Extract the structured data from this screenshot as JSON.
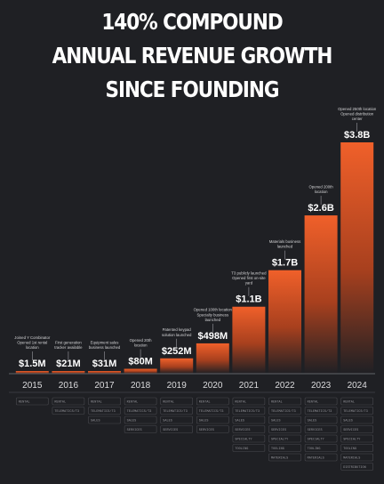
{
  "headline": {
    "line1": "140% COMPOUND",
    "line2": "ANNUAL REVENUE GROWTH",
    "line3": "SINCE FOUNDING"
  },
  "colors": {
    "background": "#1f2024",
    "bar_top": "#f0602a",
    "bar_bottom": "#1f2024"
  },
  "chart_data": {
    "type": "bar",
    "categories": [
      "2015",
      "2016",
      "2017",
      "2018",
      "2019",
      "2020",
      "2021",
      "2022",
      "2023",
      "2024"
    ],
    "values": [
      1.5,
      21,
      31,
      80,
      252,
      498,
      1100,
      1700,
      2600,
      3800
    ],
    "value_labels": [
      "$1.5M",
      "$21M",
      "$31M",
      "$80M",
      "$252M",
      "$498M",
      "$1.1B",
      "$1.7B",
      "$2.6B",
      "$3.8B"
    ],
    "milestones": [
      [
        "Joined Y Combinator",
        "Opened 1st rental",
        "location"
      ],
      [
        "First generation",
        "tracker available"
      ],
      [
        "Equipment sales",
        "business launched"
      ],
      [
        "Opened 20th",
        "location"
      ],
      [
        "Patented keypad",
        "solution launched"
      ],
      [
        "Opened 100th location",
        "Specialty business",
        "launched"
      ],
      [
        "T3 publicly launched",
        "Opened first on-site",
        "yard"
      ],
      [
        "Materials business",
        "launched"
      ],
      [
        "Opened 200th",
        "location"
      ],
      [
        "Opened 250th location",
        "Opened distribution",
        "center"
      ]
    ],
    "business_lines": [
      [
        "RENTAL"
      ],
      [
        "RENTAL",
        "TELEMATICS/T3"
      ],
      [
        "RENTAL",
        "TELEMATICS/T3",
        "SALES"
      ],
      [
        "RENTAL",
        "TELEMATICS/T3",
        "SALES",
        "SERVICES"
      ],
      [
        "RENTAL",
        "TELEMATICS/T3",
        "SALES",
        "SERVICES"
      ],
      [
        "RENTAL",
        "TELEMATICS/T3",
        "SALES",
        "SERVICES"
      ],
      [
        "RENTAL",
        "TELEMATICS/T3",
        "SALES",
        "SERVICES",
        "SPECIALTY",
        "TOOLING"
      ],
      [
        "RENTAL",
        "TELEMATICS/T3",
        "SALES",
        "SERVICES",
        "SPECIALTY",
        "TOOLING",
        "MATERIALS"
      ],
      [
        "RENTAL",
        "TELEMATICS/T3",
        "SALES",
        "SERVICES",
        "SPECIALTY",
        "TOOLING",
        "MATERIALS"
      ],
      [
        "RENTAL",
        "TELEMATICS/T3",
        "SALES",
        "SERVICES",
        "SPECIALTY",
        "TOOLING",
        "MATERIALS",
        "DISTRIBUTION"
      ]
    ],
    "title": "140% COMPOUND ANNUAL REVENUE GROWTH SINCE FOUNDING",
    "xlabel": "",
    "ylabel": "",
    "grid": false
  }
}
